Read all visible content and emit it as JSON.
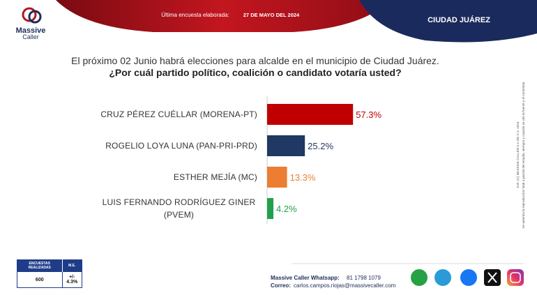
{
  "header": {
    "logo_top": "Massive",
    "logo_bottom": "Caller",
    "survey_label": "Última encuesta elaborada:",
    "survey_date": "27 DE MAYO DEL 2024",
    "city": "CIUDAD JUÁREZ"
  },
  "chart_data": {
    "type": "bar",
    "orientation": "horizontal",
    "title": "El próximo 02 Junio habrá elecciones para alcalde en el municipio de Ciudad Juárez.",
    "subtitle": "¿Por cuál partido político, coalición o candidato votaría usted?",
    "categories": [
      "CRUZ PÉREZ CUÉLLAR (MORENA-PT)",
      "ROGELIO LOYA LUNA (PAN-PRI-PRD)",
      "ESTHER MEJÍA (MC)",
      "LUIS FERNANDO RODRÍGUEZ GINER (PVEM)"
    ],
    "values": [
      57.3,
      25.2,
      13.3,
      4.2
    ],
    "value_labels": [
      "57.3%",
      "25.2%",
      "13.3%",
      "4.2%"
    ],
    "colors": [
      "#c00000",
      "#1f3864",
      "#ed7d31",
      "#22a04b"
    ]
  },
  "side_note": [
    "D.R. (C) MASSIVE CALLER S.A DE C.V. 2024",
    "Se autoriza la reproducción total o parcial del estudio, siempre y cuando se cite la fuente y el contenido."
  ],
  "survey_table": {
    "headers": [
      "ENCUESTAS REALIZADAS",
      "M.E."
    ],
    "rows": [
      [
        "600",
        "+/- 4.3%"
      ]
    ]
  },
  "footer": {
    "whatsapp_label": "Massive Caller Whatsapp:",
    "whatsapp": "81 1798 1079",
    "email_label": "Correo:",
    "email": "carlos.campos.riojas@massivecaller.com"
  }
}
